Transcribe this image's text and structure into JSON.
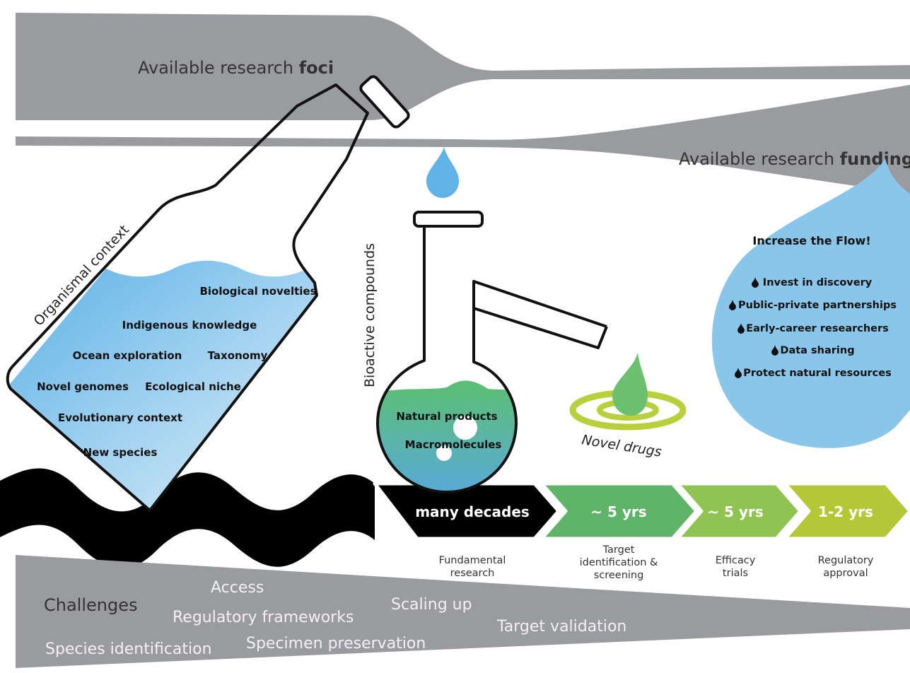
{
  "top_band": {
    "label_prefix": "Available research ",
    "label_bold": "foci"
  },
  "funding_band": {
    "label_prefix": "Available research ",
    "label_bold": "funding"
  },
  "bottle": {
    "label": "Organismal context",
    "items": [
      "Biological novelties",
      "Indigenous knowledge",
      "Ocean exploration",
      "Taxonomy",
      "Novel genomes",
      "Ecological niche",
      "Evolutionary context",
      "New species"
    ]
  },
  "flask": {
    "label": "Bioactive compounds",
    "items": [
      "Natural products",
      "Macromolecules"
    ]
  },
  "drugs": {
    "label": "Novel drugs"
  },
  "drop": {
    "title": "Increase the Flow!",
    "items": [
      "Invest in discovery",
      "Public-private partnerships",
      "Early-career researchers",
      "Data sharing",
      "Protect natural resources"
    ]
  },
  "timeline": [
    {
      "duration": "many decades",
      "stage": [
        "Fundamental",
        "research"
      ],
      "color": "#000000"
    },
    {
      "duration": "~ 5 yrs",
      "stage": [
        "Target",
        "identification &",
        "screening"
      ],
      "color": "#5fb46a"
    },
    {
      "duration": "~ 5 yrs",
      "stage": [
        "Efficacy",
        "trials"
      ],
      "color": "#8fc453"
    },
    {
      "duration": "1-2 yrs",
      "stage": [
        "Regulatory",
        "approval"
      ],
      "color": "#b4c837"
    }
  ],
  "challenges": {
    "title": "Challenges",
    "items": [
      "Access",
      "Regulatory frameworks",
      "Scaling up",
      "Target validation",
      "Specimen preservation",
      "Species identification"
    ]
  },
  "colors": {
    "band_gray": "#9a9b9e",
    "water_blue": "#60b3e6",
    "drop_blue": "#8ac6ea",
    "flask_green": "#5cba7a",
    "drug_green": "#6cc070",
    "ring_yellow": "#b9cf3c"
  }
}
